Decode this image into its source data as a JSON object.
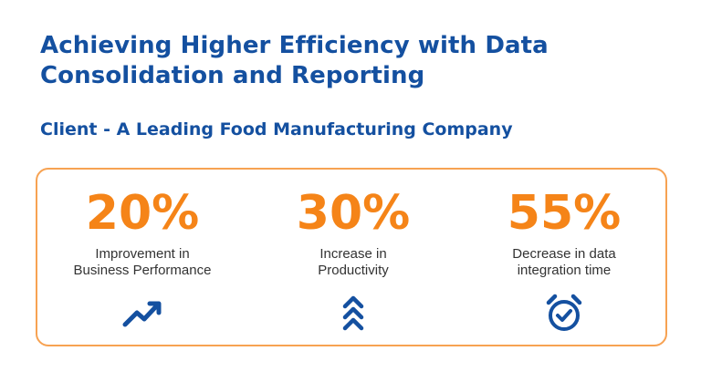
{
  "header": {
    "title_line1": "Achieving Higher Efficiency with Data",
    "title_line2": "Consolidation and Reporting",
    "subtitle": "Client - A Leading Food Manufacturing Company"
  },
  "colors": {
    "heading": "#1450a0",
    "accent": "#f58418",
    "border": "#f7a252",
    "icon": "#1450a0"
  },
  "stats": [
    {
      "value": "20%",
      "label_line1": "Improvement in",
      "label_line2": "Business Performance",
      "icon": "trending-up-icon"
    },
    {
      "value": "30%",
      "label_line1": "Increase in",
      "label_line2": "Productivity",
      "icon": "double-chevron-up-icon"
    },
    {
      "value": "55%",
      "label_line1": "Decrease in data",
      "label_line2": "integration time",
      "icon": "alarm-clock-check-icon"
    }
  ]
}
